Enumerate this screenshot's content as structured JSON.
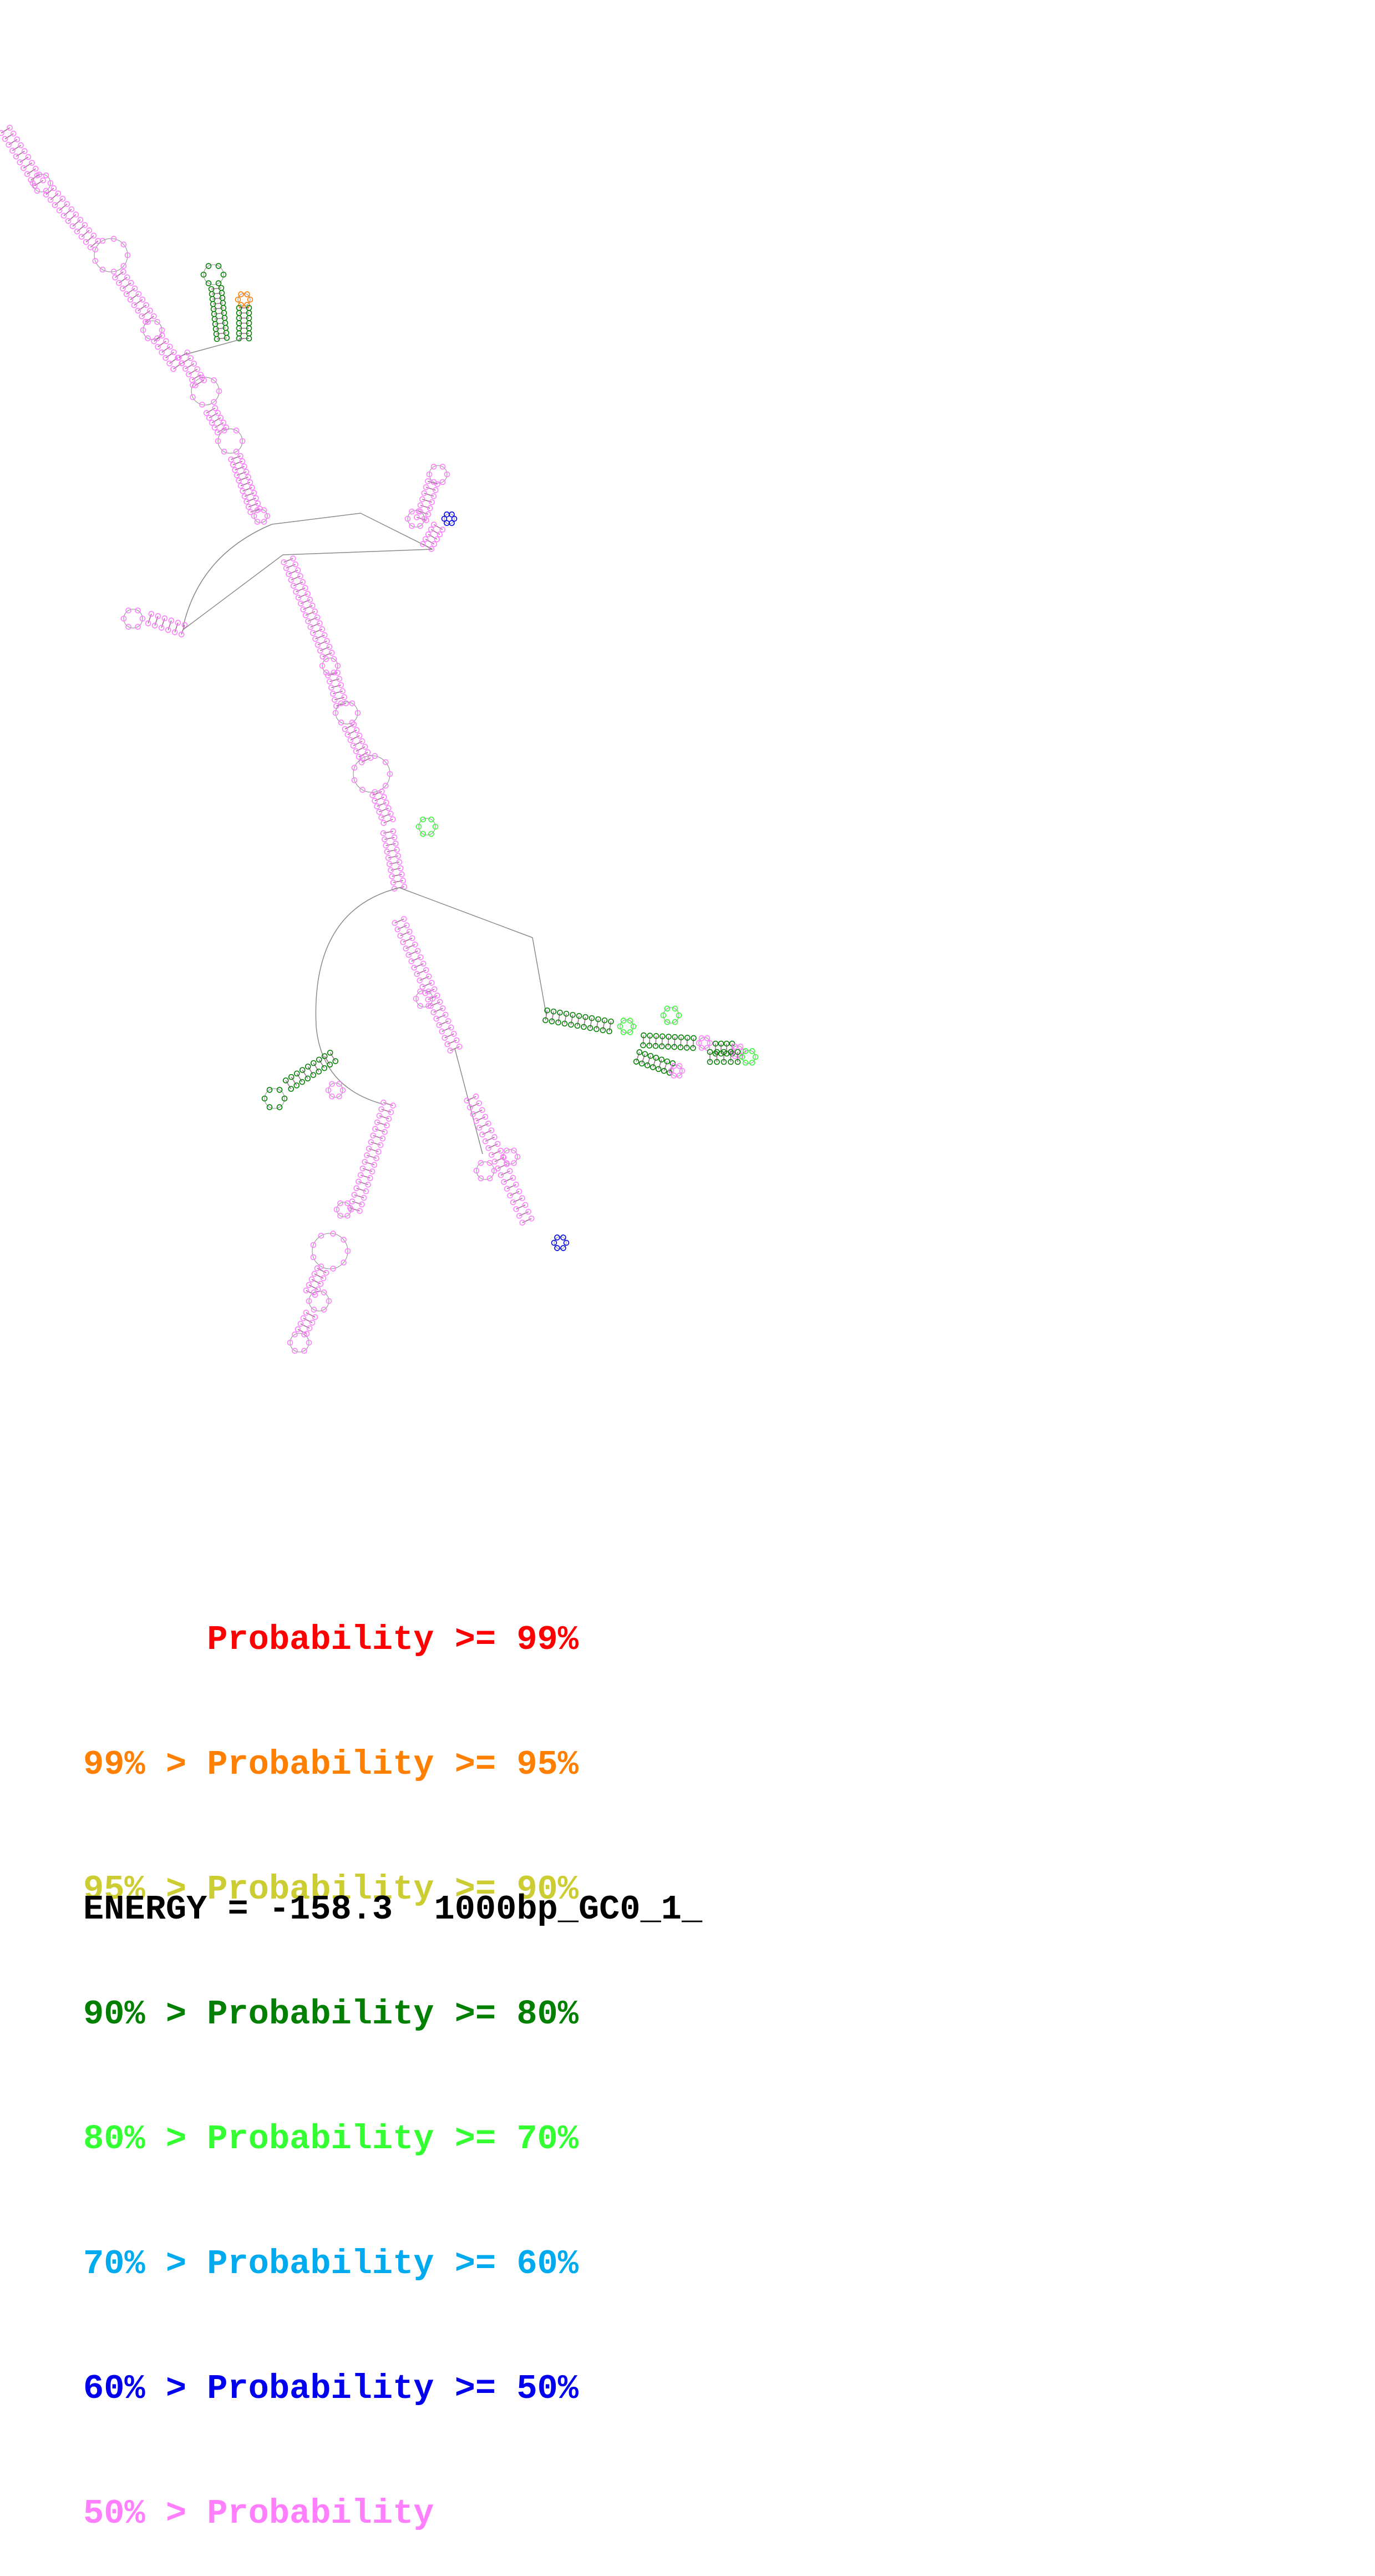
{
  "legend": [
    {
      "text": "      Probability >= 99%",
      "color": "#ff0000"
    },
    {
      "text": "99% > Probability >= 95%",
      "color": "#ff7f00"
    },
    {
      "text": "95% > Probability >= 90%",
      "color": "#cccc33"
    },
    {
      "text": "90% > Probability >= 80%",
      "color": "#007f00"
    },
    {
      "text": "80% > Probability >= 70%",
      "color": "#33ff33"
    },
    {
      "text": "70% > Probability >= 60%",
      "color": "#00aaee"
    },
    {
      "text": "60% > Probability >= 50%",
      "color": "#0000ee"
    },
    {
      "text": "50% > Probability",
      "color": "#ff7fff"
    }
  ],
  "energy": {
    "label": "ENERGY = -158.3",
    "sequence_name": "1000bp_GC0_1_"
  },
  "colors": {
    "backbone": "#8a8a8a",
    "default_base": "#ff7fff",
    "pair_line": "#9a6a8a"
  }
}
